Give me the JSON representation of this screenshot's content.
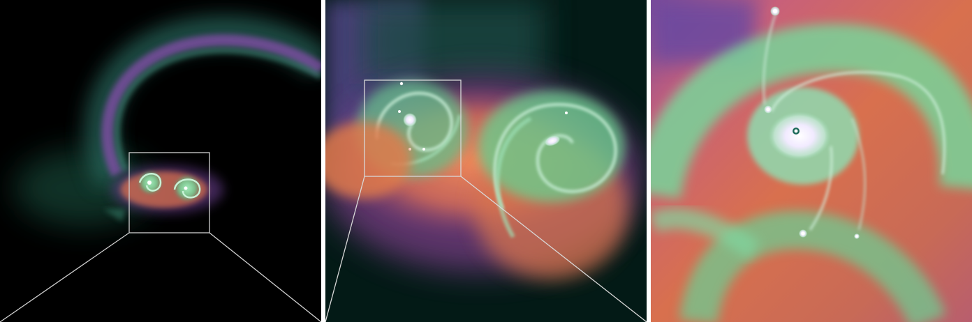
{
  "figure": {
    "panel_count": 3,
    "panels": [
      {
        "name": "panel-wide-view"
      },
      {
        "name": "panel-zoom-1"
      },
      {
        "name": "panel-zoom-2"
      }
    ],
    "colors": {
      "background": "#000000",
      "separator": "#ffffff",
      "frame": "#d0d0d0",
      "violet": "#7a5aa8",
      "deep_teal": "#1c4a44",
      "mint_green": "#7fd59a",
      "orange": "#e0784a",
      "magenta": "#c05a8a",
      "white_core": "#f4f0ff"
    }
  }
}
